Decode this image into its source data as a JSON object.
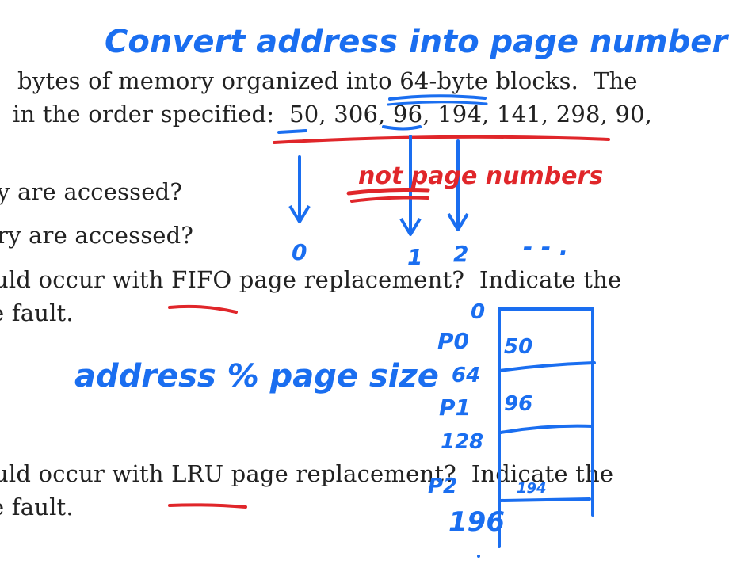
{
  "document": {
    "lines": [
      "bytes of memory organized into 64-byte blocks.  The",
      "in the order specified:  50, 306, 96, 194, 141, 298, 90,",
      "y are accessed?",
      "ry are accessed?",
      "uld occur with FIFO page replacement?  Indicate the",
      "e fault.",
      "uld occur with LRU page replacement?  Indicate the",
      "e fault."
    ]
  },
  "annotations": {
    "title": "Convert address into page number",
    "not_page_numbers": "not page numbers",
    "formula": "address % page size",
    "page_index_0": "0",
    "page_index_1": "1",
    "page_index_2": "2",
    "ellipsis": "- - .",
    "table": {
      "top_label": "0",
      "rows": [
        {
          "page": "P0",
          "address": "50"
        },
        {
          "page": "P1",
          "address": "96"
        },
        {
          "page": "P2",
          "address": "194"
        }
      ],
      "boundaries": [
        "64",
        "128",
        "196"
      ]
    }
  },
  "colors": {
    "text": "#222222",
    "blue_ink": "#1a6ef0",
    "red_ink": "#e0262a"
  }
}
